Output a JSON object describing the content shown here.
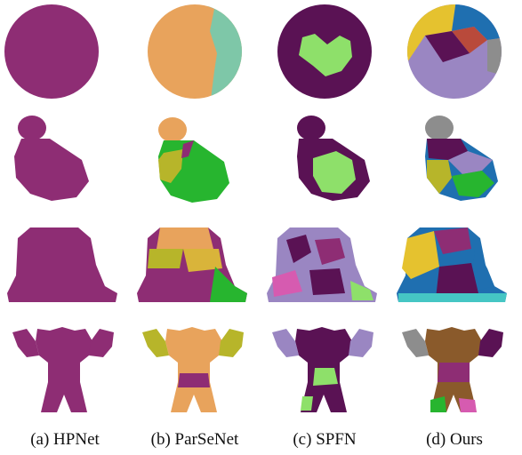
{
  "columns": [
    {
      "label": "(a) HPNet"
    },
    {
      "label": "(b) ParSeNet"
    },
    {
      "label": "(c) SPFN"
    },
    {
      "label": "(d) Ours"
    }
  ],
  "rows": [
    "sphere",
    "bottle",
    "frog",
    "figure"
  ],
  "colors": {
    "purple": "#8e2d74",
    "dark_purple": "#5a1254",
    "orange": "#e8a35c",
    "teal": "#7ec7a8",
    "green": "#27b52f",
    "light_green": "#8ee06a",
    "olive": "#b7b52a",
    "lavender": "#9a86c2",
    "blue": "#1f6fb0",
    "gray": "#8d8d8d",
    "pink": "#d65bb0",
    "brown": "#8a5a2b",
    "cyan": "#45c6c4",
    "yellow": "#e5c22f"
  }
}
